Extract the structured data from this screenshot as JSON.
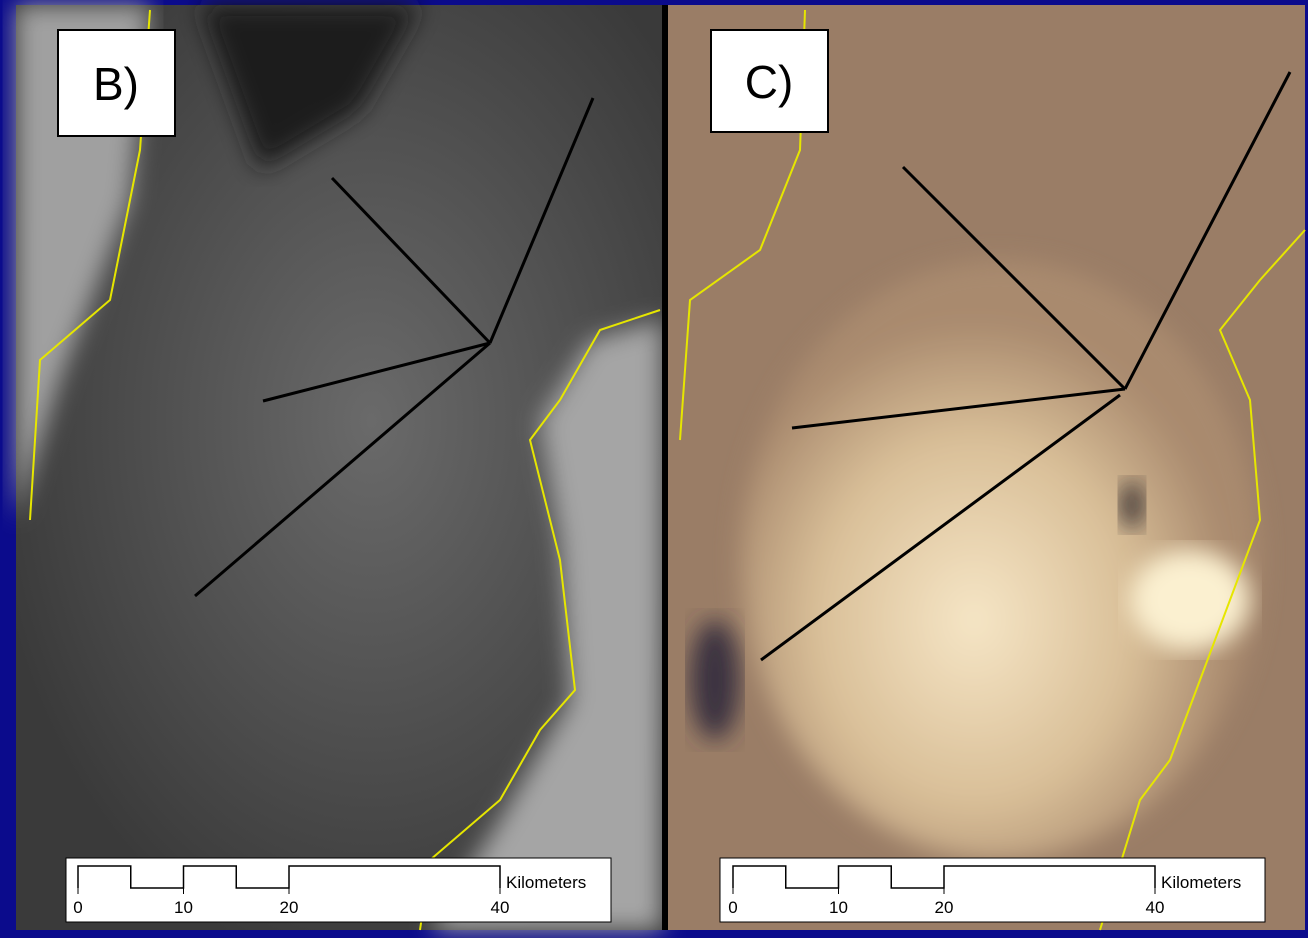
{
  "panels": [
    {
      "label": "B)",
      "scale_ticks": [
        0,
        10,
        20,
        40
      ],
      "scale_unit": "Kilometers"
    },
    {
      "label": "C)",
      "scale_ticks": [
        0,
        10,
        20,
        40
      ],
      "scale_unit": "Kilometers"
    }
  ]
}
